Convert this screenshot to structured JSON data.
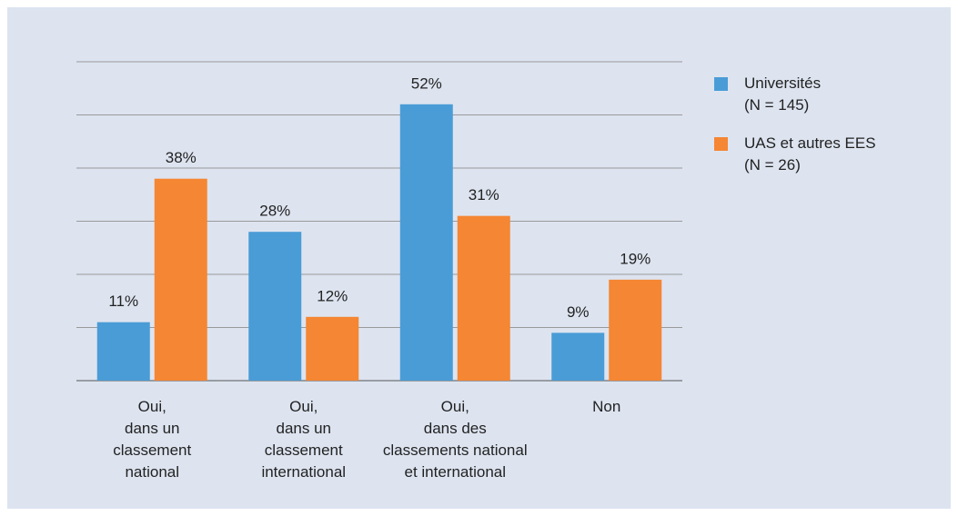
{
  "chart_data": {
    "type": "bar",
    "categories": [
      "Oui,\ndans un\nclassement\nnational",
      "Oui,\ndans un\nclassement\ninternational",
      "Oui,\ndans des\nclassements national\net international",
      "Non"
    ],
    "series": [
      {
        "name": "Universités\n(N = 145)",
        "color": "#4a9cd6",
        "values": [
          11,
          28,
          52,
          9
        ],
        "value_labels": [
          "11%",
          "28%",
          "52%",
          "9%"
        ]
      },
      {
        "name": "UAS et autres EES\n(N = 26)",
        "color": "#f58634",
        "values": [
          38,
          12,
          31,
          19
        ],
        "value_labels": [
          "38%",
          "12%",
          "31%",
          "19%"
        ]
      }
    ],
    "ylim": [
      0,
      60
    ],
    "yticks": [
      0,
      10,
      20,
      30,
      40,
      50,
      60
    ],
    "grid": true,
    "legend": "right"
  }
}
